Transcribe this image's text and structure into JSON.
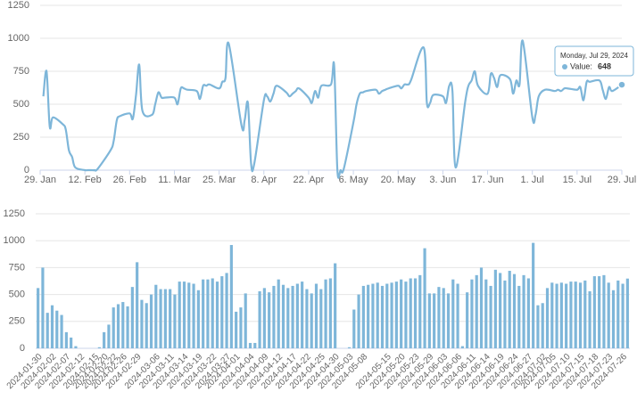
{
  "chart_data": [
    {
      "type": "line",
      "color": "#7eb6d9",
      "grid": true,
      "ylim": [
        0,
        1250
      ],
      "yticks": [
        0,
        250,
        500,
        750,
        1000,
        1250
      ],
      "xlim": [
        "2024-01-29",
        "2024-07-29"
      ],
      "xticks": [
        {
          "value": "2024-01-29",
          "label": "29. Jan"
        },
        {
          "value": "2024-02-12",
          "label": "12. Feb"
        },
        {
          "value": "2024-02-26",
          "label": "26. Feb"
        },
        {
          "value": "2024-03-11",
          "label": "11. Mar"
        },
        {
          "value": "2024-03-25",
          "label": "25. Mar"
        },
        {
          "value": "2024-04-08",
          "label": "8. Apr"
        },
        {
          "value": "2024-04-22",
          "label": "22. Apr"
        },
        {
          "value": "2024-05-06",
          "label": "6. May"
        },
        {
          "value": "2024-05-20",
          "label": "20. May"
        },
        {
          "value": "2024-06-03",
          "label": "3. Jun"
        },
        {
          "value": "2024-06-17",
          "label": "17. Jun"
        },
        {
          "value": "2024-07-01",
          "label": "1. Jul"
        },
        {
          "value": "2024-07-15",
          "label": "15. Jul"
        },
        {
          "value": "2024-07-29",
          "label": "29. Jul"
        }
      ],
      "tooltip": {
        "title": "Monday, Jul 29, 2024",
        "label": "Value:"
      },
      "x": [
        "2024-01-30",
        "2024-01-31",
        "2024-02-01",
        "2024-02-02",
        "2024-02-05",
        "2024-02-06",
        "2024-02-07",
        "2024-02-08",
        "2024-02-09",
        "2024-02-12",
        "2024-02-13",
        "2024-02-14",
        "2024-02-15",
        "2024-02-16",
        "2024-02-20",
        "2024-02-21",
        "2024-02-22",
        "2024-02-23",
        "2024-02-26",
        "2024-02-27",
        "2024-02-28",
        "2024-02-29",
        "2024-03-01",
        "2024-03-04",
        "2024-03-05",
        "2024-03-06",
        "2024-03-07",
        "2024-03-08",
        "2024-03-11",
        "2024-03-12",
        "2024-03-13",
        "2024-03-14",
        "2024-03-15",
        "2024-03-18",
        "2024-03-19",
        "2024-03-20",
        "2024-03-21",
        "2024-03-22",
        "2024-03-25",
        "2024-03-26",
        "2024-03-27",
        "2024-03-28",
        "2024-04-01",
        "2024-04-02",
        "2024-04-03",
        "2024-04-04",
        "2024-04-05",
        "2024-04-08",
        "2024-04-09",
        "2024-04-10",
        "2024-04-11",
        "2024-04-12",
        "2024-04-15",
        "2024-04-16",
        "2024-04-17",
        "2024-04-18",
        "2024-04-19",
        "2024-04-22",
        "2024-04-23",
        "2024-04-24",
        "2024-04-25",
        "2024-04-26",
        "2024-04-29",
        "2024-04-30",
        "2024-05-01",
        "2024-05-02",
        "2024-05-03",
        "2024-05-06",
        "2024-05-07",
        "2024-05-08",
        "2024-05-09",
        "2024-05-10",
        "2024-05-13",
        "2024-05-14",
        "2024-05-15",
        "2024-05-16",
        "2024-05-17",
        "2024-05-20",
        "2024-05-21",
        "2024-05-22",
        "2024-05-23",
        "2024-05-24",
        "2024-05-28",
        "2024-05-29",
        "2024-05-30",
        "2024-05-31",
        "2024-06-03",
        "2024-06-04",
        "2024-06-05",
        "2024-06-06",
        "2024-06-07",
        "2024-06-10",
        "2024-06-11",
        "2024-06-12",
        "2024-06-13",
        "2024-06-14",
        "2024-06-17",
        "2024-06-18",
        "2024-06-19",
        "2024-06-20",
        "2024-06-21",
        "2024-06-24",
        "2024-06-25",
        "2024-06-26",
        "2024-06-27",
        "2024-06-28",
        "2024-07-01",
        "2024-07-02",
        "2024-07-03",
        "2024-07-05",
        "2024-07-08",
        "2024-07-09",
        "2024-07-10",
        "2024-07-11",
        "2024-07-12",
        "2024-07-15",
        "2024-07-16",
        "2024-07-17",
        "2024-07-18",
        "2024-07-19",
        "2024-07-22",
        "2024-07-23",
        "2024-07-24",
        "2024-07-25",
        "2024-07-26",
        "2024-07-29"
      ],
      "values": [
        560,
        750,
        330,
        400,
        350,
        310,
        150,
        100,
        20,
        0,
        0,
        0,
        0,
        10,
        150,
        220,
        380,
        410,
        430,
        390,
        570,
        800,
        450,
        420,
        500,
        590,
        550,
        550,
        550,
        500,
        620,
        620,
        610,
        600,
        540,
        640,
        640,
        650,
        620,
        670,
        700,
        960,
        340,
        380,
        510,
        50,
        50,
        530,
        560,
        520,
        580,
        640,
        590,
        560,
        580,
        600,
        620,
        550,
        510,
        600,
        550,
        640,
        650,
        790,
        0,
        0,
        10,
        360,
        500,
        580,
        590,
        600,
        610,
        580,
        600,
        610,
        620,
        640,
        620,
        650,
        650,
        680,
        930,
        510,
        510,
        570,
        560,
        510,
        640,
        600,
        20,
        520,
        640,
        680,
        750,
        640,
        580,
        730,
        700,
        630,
        720,
        690,
        580,
        680,
        650,
        980,
        400,
        420,
        560,
        610,
        600,
        610,
        600,
        620,
        620,
        610,
        630,
        530,
        670,
        670,
        680,
        610,
        540,
        630,
        600,
        648
      ]
    },
    {
      "type": "bar",
      "color": "#7eb6d9",
      "grid": true,
      "ylim": [
        0,
        1250
      ],
      "yticks": [
        0,
        250,
        500,
        750,
        1000,
        1250
      ],
      "categories": [
        "2024-01-30",
        null,
        null,
        "2024-02-02",
        null,
        null,
        "2024-02-07",
        null,
        null,
        "2024-02-12",
        null,
        null,
        "2024-02-15",
        null,
        "2024-02-20",
        null,
        "2024-02-22",
        null,
        "2024-02-26",
        null,
        null,
        "2024-02-29",
        null,
        null,
        null,
        "2024-03-06",
        null,
        null,
        "2024-03-11",
        null,
        null,
        "2024-03-14",
        null,
        null,
        "2024-03-19",
        null,
        null,
        "2024-03-22",
        null,
        null,
        "2024-03-27",
        null,
        "2024-04-01",
        null,
        null,
        "2024-04-04",
        null,
        null,
        "2024-04-09",
        null,
        null,
        "2024-04-12",
        null,
        null,
        "2024-04-17",
        null,
        null,
        "2024-04-22",
        null,
        null,
        "2024-04-25",
        null,
        null,
        "2024-04-30",
        null,
        null,
        "2024-05-03",
        null,
        null,
        "2024-05-08",
        null,
        null,
        null,
        null,
        "2024-05-15",
        null,
        null,
        "2024-05-20",
        null,
        null,
        "2024-05-23",
        null,
        null,
        "2024-05-29",
        null,
        null,
        "2024-06-03",
        null,
        null,
        "2024-06-06",
        null,
        null,
        "2024-06-11",
        null,
        null,
        "2024-06-14",
        null,
        null,
        "2024-06-19",
        null,
        null,
        "2024-06-24",
        null,
        null,
        "2024-06-27",
        null,
        null,
        "2024-07-02",
        null,
        "2024-07-05",
        null,
        null,
        "2024-07-10",
        null,
        null,
        "2024-07-15",
        null,
        null,
        "2024-07-18",
        null,
        null,
        "2024-07-23",
        null,
        null,
        "2024-07-26",
        null
      ],
      "values": [
        560,
        750,
        330,
        400,
        350,
        310,
        150,
        100,
        20,
        0,
        0,
        0,
        0,
        10,
        150,
        220,
        380,
        410,
        430,
        390,
        570,
        800,
        450,
        420,
        500,
        590,
        550,
        550,
        550,
        500,
        620,
        620,
        610,
        600,
        540,
        640,
        640,
        650,
        620,
        670,
        700,
        960,
        340,
        380,
        510,
        50,
        50,
        530,
        560,
        520,
        580,
        640,
        590,
        560,
        580,
        600,
        620,
        550,
        510,
        600,
        550,
        640,
        650,
        790,
        0,
        0,
        10,
        360,
        500,
        580,
        590,
        600,
        610,
        580,
        600,
        610,
        620,
        640,
        620,
        650,
        650,
        680,
        930,
        510,
        510,
        570,
        560,
        510,
        640,
        600,
        20,
        520,
        640,
        680,
        750,
        640,
        580,
        730,
        700,
        630,
        720,
        690,
        580,
        680,
        650,
        980,
        400,
        420,
        560,
        610,
        600,
        610,
        600,
        620,
        620,
        610,
        630,
        530,
        670,
        670,
        680,
        610,
        540,
        630,
        600,
        648
      ]
    }
  ]
}
